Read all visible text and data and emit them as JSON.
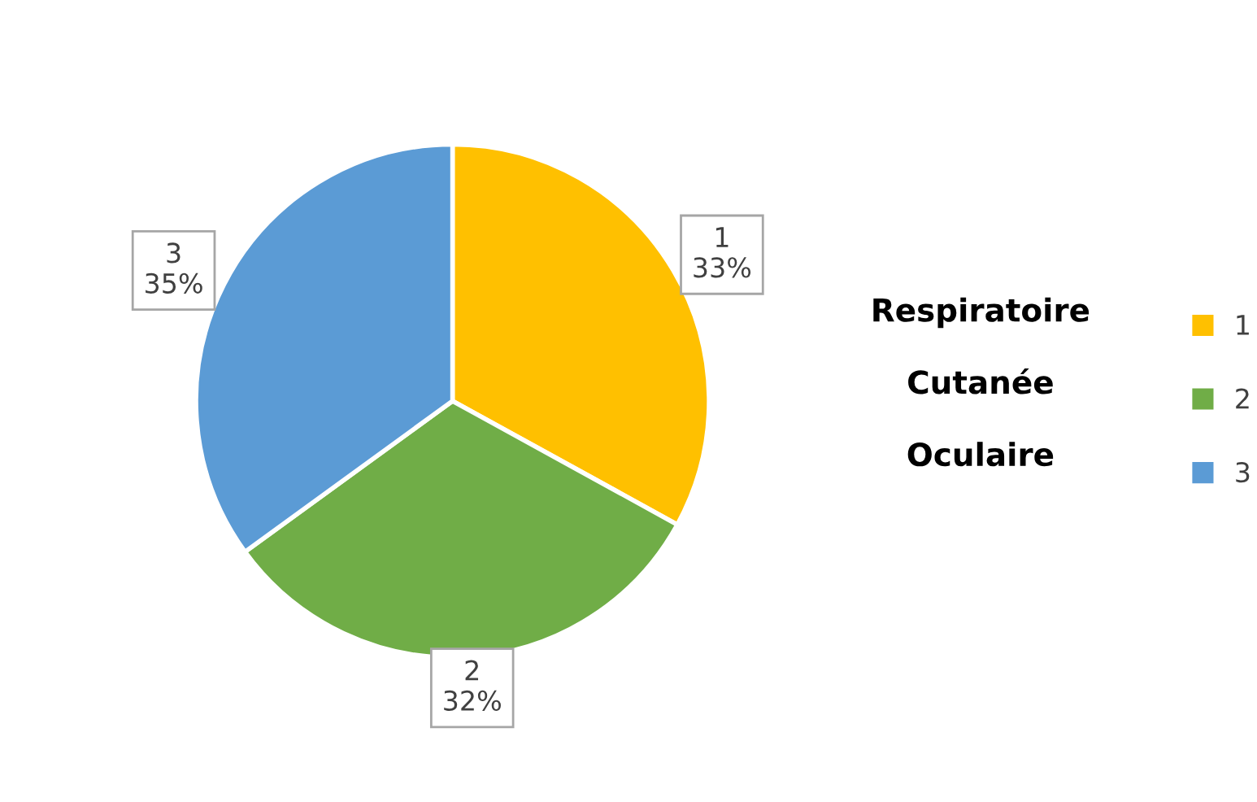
{
  "chart_data": {
    "type": "pie",
    "categories": [
      "1",
      "2",
      "3"
    ],
    "values": [
      33,
      32,
      35
    ],
    "colors": [
      "#ffc000",
      "#70ad47",
      "#5b9bd5"
    ],
    "value_labels": [
      "33%",
      "32%",
      "35%"
    ],
    "legend": "right",
    "annotations": [
      "Respiratoire",
      "Cutanée",
      "Oculaire"
    ]
  }
}
